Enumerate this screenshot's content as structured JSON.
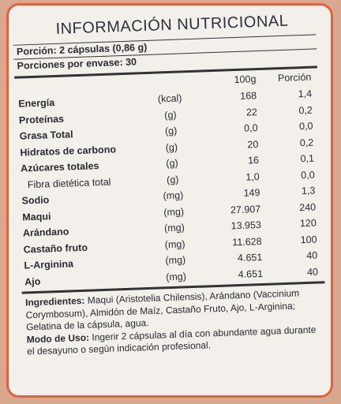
{
  "header": {
    "title": "INFORMACIÓN NUTRICIONAL"
  },
  "serving": {
    "size": "Porción: 2 cápsulas (0,86 g)",
    "servings": "Porciones por envase: 30"
  },
  "table": {
    "columns": [
      "100g",
      "Porción"
    ],
    "rows": [
      [
        "Energía",
        "(kcal)",
        "168",
        "1,4"
      ],
      [
        "Proteínas",
        "(g)",
        "22",
        "0,2"
      ],
      [
        "Grasa Total",
        "(g)",
        "0,0",
        "0,0"
      ],
      [
        "Hidratos de carbono",
        "(g)",
        "20",
        "0,2"
      ],
      [
        "Azúcares totales",
        "(g)",
        "16",
        "0,1"
      ],
      [
        "Fibra dietética total",
        "(g)",
        "1,0",
        "0,0"
      ],
      [
        "Sodio",
        "(mg)",
        "149",
        "1,3"
      ],
      [
        "Maqui",
        "(mg)",
        "27.907",
        "240"
      ],
      [
        "Arándano",
        "(mg)",
        "13.953",
        "120"
      ],
      [
        "Castaño fruto",
        "(mg)",
        "11.628",
        "100"
      ],
      [
        "L-Arginina",
        "(mg)",
        "4.651",
        "40"
      ],
      [
        "Ajo",
        "(mg)",
        "4.651",
        "40"
      ]
    ]
  },
  "ingredients": {
    "label": "Ingredientes:",
    "text": "Maqui (Aristotelia Chilensis), Arándano (Vaccinium Corymbosum), Almidón de Maíz, Castaño Fruto, Ajo, L-Arginina; Gelatina de la cápsula, agua."
  },
  "usage": {
    "label": "Modo de Uso:",
    "text": "Ingerir 2 cápsulas al día con abundante agua durante el desayuno o según indicación profesional."
  }
}
